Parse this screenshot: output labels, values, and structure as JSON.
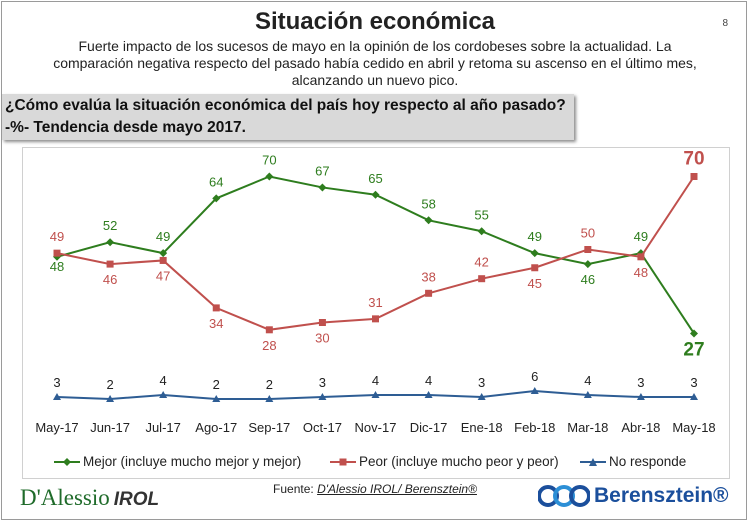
{
  "page": {
    "title": "Situación económica",
    "page_number": "8",
    "subtitle": "Fuerte impacto de los sucesos de mayo en la opinión de los cordobeses sobre la actualidad. La comparación negativa respecto del pasado había cedido en abril y retoma su ascenso en el último mes, alcanzando un nuevo pico.",
    "question": "¿Cómo evalúa  la situación económica del país hoy respecto al año pasado?",
    "trend_note": "-%- Tendencia desde mayo 2017.",
    "source_prefix": "Fuente: ",
    "source_names": "D'Alessio IROL/ Berensztein®"
  },
  "logos": {
    "left_main": "D'Alessio",
    "left_suffix": "IROL",
    "right_name": "Berensztein®"
  },
  "colors": {
    "mejor": "#2e7d1e",
    "peor": "#c0504d",
    "no_responde": "#2e5d94"
  },
  "chart_data": {
    "type": "line",
    "categories": [
      "May-17",
      "Jun-17",
      "Jul-17",
      "Ago-17",
      "Sep-17",
      "Oct-17",
      "Nov-17",
      "Dic-17",
      "Ene-18",
      "Feb-18",
      "Mar-18",
      "Abr-18",
      "May-18"
    ],
    "series": [
      {
        "name": "Mejor (incluye mucho mejor y mejor)",
        "key": "mejor",
        "marker": "diamond",
        "values": [
          48,
          52,
          49,
          64,
          70,
          67,
          65,
          58,
          55,
          49,
          46,
          49,
          27
        ]
      },
      {
        "name": "Peor (incluye mucho peor y peor)",
        "key": "peor",
        "marker": "square",
        "values": [
          49,
          46,
          47,
          34,
          28,
          30,
          31,
          38,
          42,
          45,
          50,
          48,
          70
        ]
      },
      {
        "name": "No responde",
        "key": "no_responde",
        "marker": "triangle",
        "values": [
          3,
          2,
          4,
          2,
          2,
          3,
          4,
          4,
          3,
          6,
          4,
          3,
          3
        ]
      }
    ],
    "ylim": [
      0,
      75
    ],
    "grid": false,
    "legend_position": "bottom"
  }
}
